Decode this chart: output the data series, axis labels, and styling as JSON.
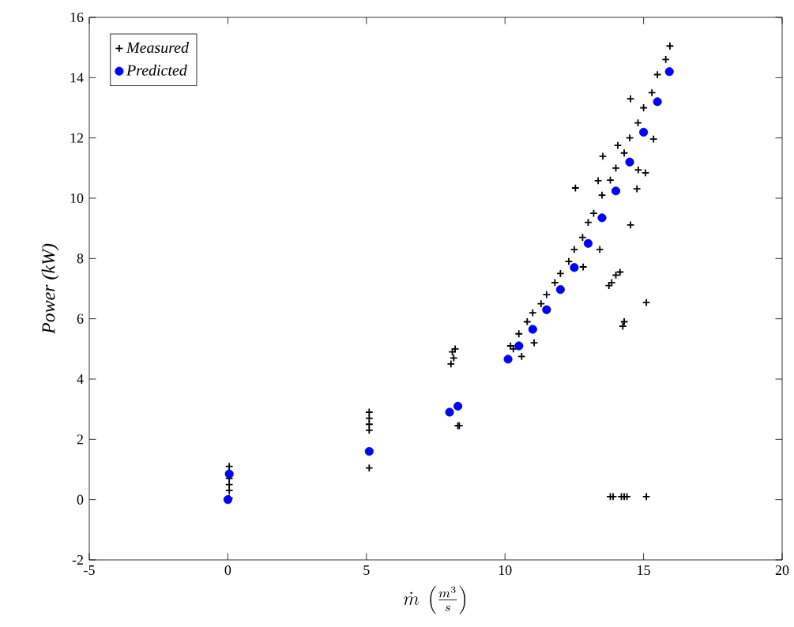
{
  "chart_data": {
    "type": "scatter",
    "xlabel": "\\dot{m}\\ \\left(\\frac{m^3}{s}\\right)",
    "ylabel": "Power (kW)",
    "xlim": [
      -5,
      20
    ],
    "ylim": [
      -2,
      16
    ],
    "xticks": [
      -5,
      0,
      5,
      10,
      15,
      20
    ],
    "yticks": [
      -2,
      0,
      2,
      4,
      6,
      8,
      10,
      12,
      14,
      16
    ],
    "legend": "top left",
    "grid": false,
    "series": [
      {
        "name": "Measured",
        "color": "#000000",
        "marker": "cross",
        "x": [
          0.05,
          0.05,
          0.05,
          0.05,
          0.05,
          0.05,
          5.1,
          5.1,
          5.1,
          5.1,
          5.1,
          8.05,
          8.15,
          8.1,
          8.2,
          8.3,
          8.35,
          10.2,
          10.3,
          10.5,
          10.6,
          10.8,
          11.0,
          11.05,
          11.3,
          11.5,
          11.8,
          12.0,
          12.3,
          12.5,
          12.8,
          13.0,
          13.2,
          13.5,
          13.8,
          14.0,
          14.3,
          14.5,
          14.8,
          15.0,
          15.3,
          15.5,
          15.8,
          15.95,
          14.53,
          12.54,
          13.53,
          13.36,
          14.07,
          15.36,
          14.81,
          15.07,
          14.76,
          14.53,
          13.42,
          12.82,
          13.75,
          13.85,
          14.0,
          14.15,
          15.1,
          14.3,
          14.25,
          13.8,
          13.9,
          14.2,
          14.3,
          14.4,
          15.1
        ],
        "values": [
          0.05,
          0.3,
          0.5,
          0.7,
          0.9,
          1.1,
          1.05,
          2.3,
          2.5,
          2.7,
          2.9,
          4.5,
          4.7,
          4.9,
          5.0,
          2.45,
          2.45,
          5.1,
          5.0,
          5.5,
          4.75,
          5.9,
          6.2,
          5.2,
          6.5,
          6.8,
          7.2,
          7.5,
          7.9,
          8.3,
          8.7,
          9.2,
          9.5,
          10.1,
          10.6,
          11.0,
          11.5,
          12.0,
          12.5,
          13.0,
          13.5,
          14.1,
          14.6,
          15.05,
          13.3,
          10.34,
          11.39,
          10.58,
          11.75,
          11.96,
          10.94,
          10.84,
          10.31,
          9.11,
          8.3,
          7.72,
          7.1,
          7.2,
          7.45,
          7.55,
          6.54,
          5.9,
          5.75,
          0.1,
          0.1,
          0.1,
          0.1,
          0.1,
          0.1
        ]
      },
      {
        "name": "Predicted",
        "color": "#0000ff",
        "marker": "circle",
        "x": [
          0.0,
          0.05,
          5.1,
          8.0,
          8.3,
          10.11,
          10.5,
          11.0,
          11.5,
          12.0,
          12.5,
          13.0,
          13.5,
          14.0,
          14.5,
          15.0,
          15.5,
          15.93
        ],
        "values": [
          0.0,
          0.85,
          1.6,
          2.9,
          3.1,
          4.66,
          5.1,
          5.65,
          6.3,
          6.97,
          7.7,
          8.5,
          9.35,
          10.24,
          11.2,
          12.19,
          13.2,
          14.2
        ]
      }
    ]
  }
}
